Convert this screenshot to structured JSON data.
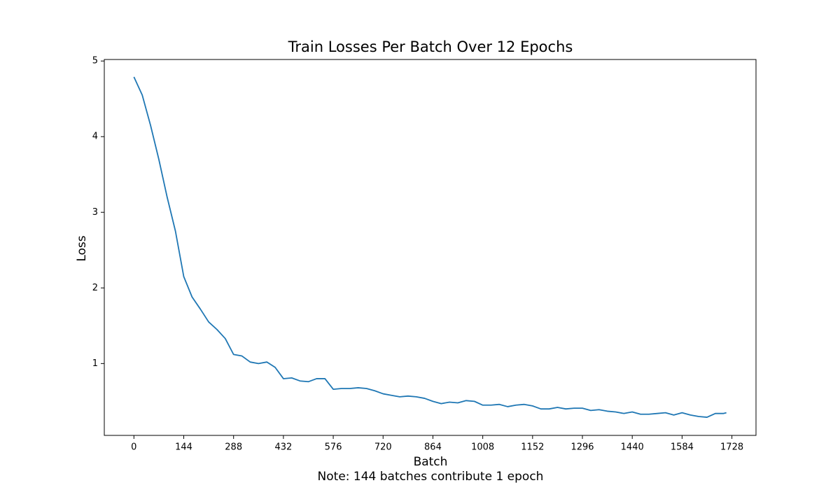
{
  "chart_data": {
    "type": "line",
    "title": "Train Losses Per Batch Over 12 Epochs",
    "xlabel": "Batch",
    "ylabel": "Loss",
    "note": "Note: 144 batches contribute 1 epoch",
    "xlim": [
      -85.6,
      1797.6
    ],
    "ylim": [
      0.05,
      5.02
    ],
    "xticks": [
      0,
      144,
      288,
      432,
      576,
      720,
      864,
      1008,
      1152,
      1296,
      1440,
      1584,
      1728
    ],
    "yticks": [
      1,
      2,
      3,
      4,
      5
    ],
    "grid": false,
    "series": [
      {
        "name": "Train Loss",
        "color": "#1f77b4",
        "x": [
          0,
          24,
          48,
          72,
          96,
          120,
          144,
          168,
          192,
          216,
          240,
          264,
          288,
          312,
          336,
          360,
          384,
          408,
          432,
          456,
          480,
          504,
          528,
          552,
          576,
          600,
          624,
          648,
          672,
          696,
          720,
          744,
          768,
          792,
          816,
          840,
          864,
          888,
          912,
          936,
          960,
          984,
          1008,
          1032,
          1056,
          1080,
          1104,
          1128,
          1152,
          1176,
          1200,
          1224,
          1248,
          1272,
          1296,
          1320,
          1344,
          1368,
          1392,
          1416,
          1440,
          1464,
          1488,
          1512,
          1536,
          1560,
          1584,
          1608,
          1632,
          1656,
          1680,
          1704,
          1712
        ],
        "values": [
          4.79,
          4.55,
          4.15,
          3.7,
          3.2,
          2.75,
          2.15,
          1.88,
          1.72,
          1.55,
          1.45,
          1.33,
          1.12,
          1.1,
          1.02,
          1.0,
          1.02,
          0.95,
          0.8,
          0.81,
          0.77,
          0.76,
          0.8,
          0.8,
          0.66,
          0.67,
          0.67,
          0.68,
          0.67,
          0.64,
          0.6,
          0.58,
          0.56,
          0.57,
          0.56,
          0.54,
          0.5,
          0.47,
          0.49,
          0.48,
          0.51,
          0.5,
          0.45,
          0.45,
          0.46,
          0.43,
          0.45,
          0.46,
          0.44,
          0.4,
          0.4,
          0.42,
          0.4,
          0.41,
          0.41,
          0.38,
          0.39,
          0.37,
          0.36,
          0.34,
          0.36,
          0.33,
          0.33,
          0.34,
          0.35,
          0.32,
          0.35,
          0.32,
          0.3,
          0.29,
          0.34,
          0.34,
          0.35
        ]
      }
    ]
  }
}
